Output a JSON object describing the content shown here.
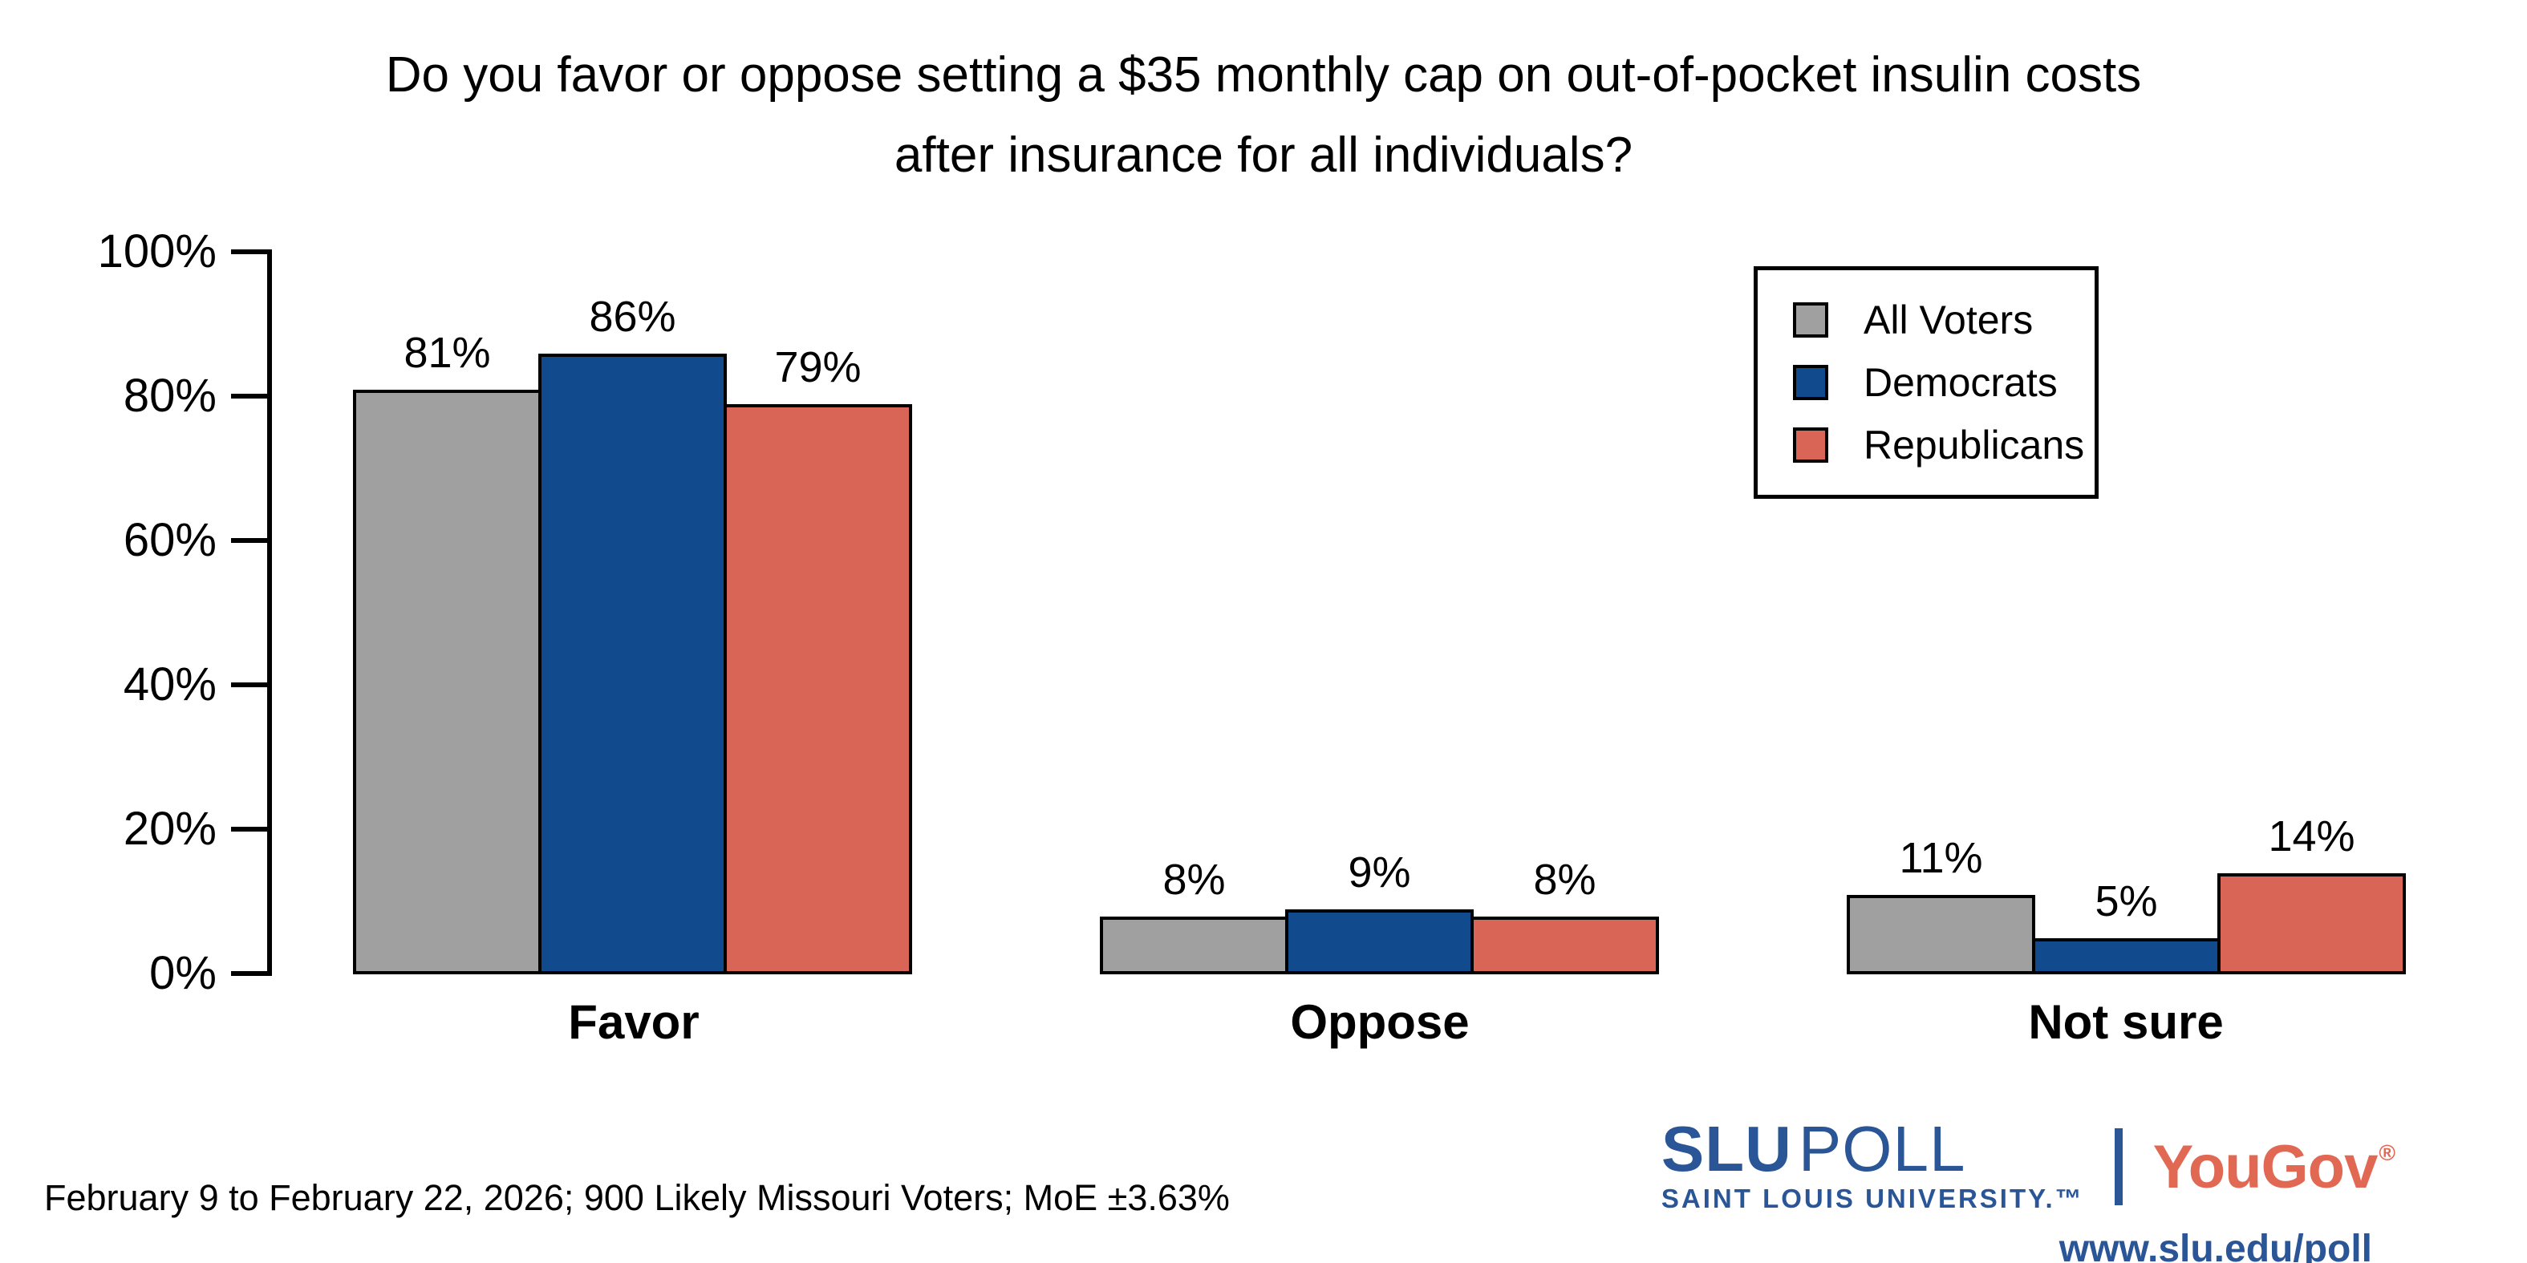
{
  "title": {
    "line1": "Do you favor or oppose setting a $35 monthly cap on out-of-pocket insulin costs",
    "line2": "after insurance for all individuals?"
  },
  "y_axis": {
    "tick_labels": [
      "100%",
      "80%",
      "60%",
      "40%",
      "20%",
      "0%"
    ]
  },
  "legend": {
    "items": [
      {
        "label": "All Voters",
        "color": "#a0a0a0"
      },
      {
        "label": "Democrats",
        "color": "#114a8d"
      },
      {
        "label": "Republicans",
        "color": "#d96556"
      }
    ]
  },
  "groups": [
    {
      "label": "Favor",
      "bars": [
        {
          "series": "All Voters",
          "value": 81,
          "display": "81%",
          "color": "#a0a0a0"
        },
        {
          "series": "Democrats",
          "value": 86,
          "display": "86%",
          "color": "#114a8d"
        },
        {
          "series": "Republicans",
          "value": 79,
          "display": "79%",
          "color": "#d96556"
        }
      ]
    },
    {
      "label": "Oppose",
      "bars": [
        {
          "series": "All Voters",
          "value": 8,
          "display": "8%",
          "color": "#a0a0a0"
        },
        {
          "series": "Democrats",
          "value": 9,
          "display": "9%",
          "color": "#114a8d"
        },
        {
          "series": "Republicans",
          "value": 8,
          "display": "8%",
          "color": "#d96556"
        }
      ]
    },
    {
      "label": "Not sure",
      "bars": [
        {
          "series": "All Voters",
          "value": 11,
          "display": "11%",
          "color": "#a0a0a0"
        },
        {
          "series": "Democrats",
          "value": 5,
          "display": "5%",
          "color": "#114a8d"
        },
        {
          "series": "Republicans",
          "value": 14,
          "display": "14%",
          "color": "#d96556"
        }
      ]
    }
  ],
  "footer": {
    "methodology": "February 9 to February 22, 2026; 900 Likely Missouri Voters; MoE ±3.63%"
  },
  "branding": {
    "slu": "SLU",
    "poll": "POLL",
    "subtitle": "SAINT LOUIS UNIVERSITY.™",
    "yougov": "YouGov",
    "registered": "®",
    "url": "www.slu.edu/poll",
    "slu_blue": "#2a5596",
    "yougov_red": "#e16853"
  },
  "chart_data": {
    "type": "bar",
    "title": "Do you favor or oppose setting a $35 monthly cap on out-of-pocket insulin costs after insurance for all individuals?",
    "categories": [
      "Favor",
      "Oppose",
      "Not sure"
    ],
    "series": [
      {
        "name": "All Voters",
        "values": [
          81,
          8,
          11
        ],
        "color": "#a0a0a0"
      },
      {
        "name": "Democrats",
        "values": [
          86,
          9,
          5
        ],
        "color": "#114a8d"
      },
      {
        "name": "Republicans",
        "values": [
          79,
          8,
          14
        ],
        "color": "#d96556"
      }
    ],
    "xlabel": "",
    "ylabel": "",
    "ylim": [
      0,
      100
    ],
    "ytick_step": 20,
    "ytick_format": "percent",
    "grid": false,
    "legend_position": "top-right",
    "value_labels": true,
    "footnote": "February 9 to February 22, 2026; 900 Likely Missouri Voters; MoE ±3.63%"
  }
}
